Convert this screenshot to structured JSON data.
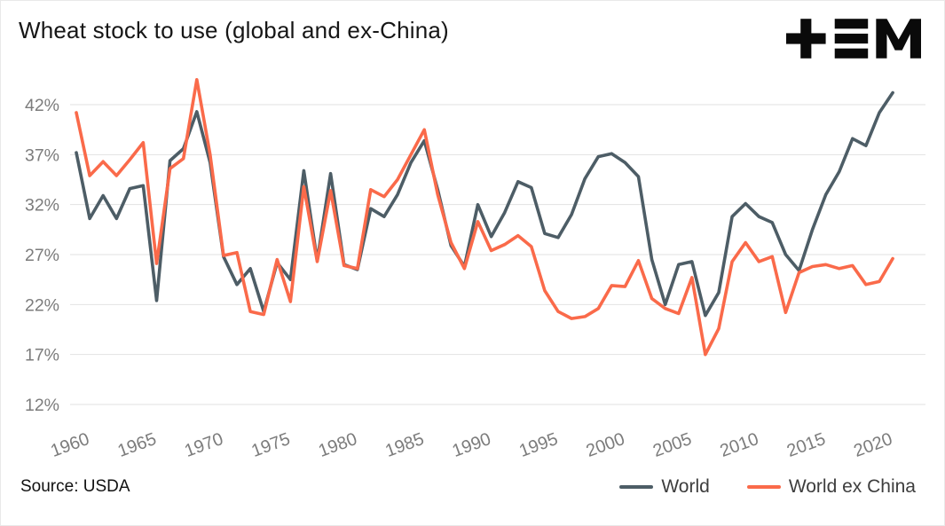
{
  "header": {
    "title": "Wheat stock to use (global and ex-China)"
  },
  "footer": {
    "source": "Source: USDA"
  },
  "chart_data": {
    "type": "line",
    "title": "Wheat stock to use (global and ex-China)",
    "source": "Source: USDA",
    "grid": "horizontal",
    "legend_position": "bottom-right",
    "ylim": [
      12,
      45
    ],
    "yticks": [
      12,
      17,
      22,
      27,
      32,
      37,
      42
    ],
    "ytick_labels": [
      "12%",
      "17%",
      "22%",
      "27%",
      "32%",
      "37%",
      "42%"
    ],
    "xticks": [
      1960,
      1965,
      1970,
      1975,
      1980,
      1985,
      1990,
      1995,
      2000,
      2005,
      2010,
      2015,
      2020
    ],
    "x": [
      1960,
      1961,
      1962,
      1963,
      1964,
      1965,
      1966,
      1967,
      1968,
      1969,
      1970,
      1971,
      1972,
      1973,
      1974,
      1975,
      1976,
      1977,
      1978,
      1979,
      1980,
      1981,
      1982,
      1983,
      1984,
      1985,
      1986,
      1987,
      1988,
      1989,
      1990,
      1991,
      1992,
      1993,
      1994,
      1995,
      1996,
      1997,
      1998,
      1999,
      2000,
      2001,
      2002,
      2003,
      2004,
      2005,
      2006,
      2007,
      2008,
      2009,
      2010,
      2011,
      2012,
      2013,
      2014,
      2015,
      2016,
      2017,
      2018,
      2019,
      2020,
      2021
    ],
    "series": [
      {
        "name": "World",
        "color": "#4d5d66",
        "values": [
          37.2,
          30.6,
          32.9,
          30.6,
          33.6,
          33.9,
          22.4,
          36.4,
          37.6,
          41.3,
          36.2,
          26.8,
          24.0,
          25.6,
          21.3,
          26.2,
          24.5,
          35.4,
          26.4,
          35.1,
          26.0,
          25.5,
          31.6,
          30.8,
          33.0,
          36.2,
          38.4,
          33.5,
          27.9,
          25.8,
          32.0,
          28.8,
          31.2,
          34.3,
          33.7,
          29.1,
          28.7,
          31.0,
          34.6,
          36.8,
          37.1,
          36.2,
          34.8,
          26.5,
          22.0,
          26.0,
          26.3,
          20.9,
          23.2,
          30.8,
          32.1,
          30.8,
          30.2,
          27.0,
          25.4,
          29.5,
          33.0,
          35.3,
          38.6,
          37.9,
          41.2,
          43.2
        ]
      },
      {
        "name": "World ex China",
        "color": "#fa6a4a",
        "values": [
          41.2,
          34.9,
          36.3,
          34.9,
          36.5,
          38.2,
          26.1,
          35.6,
          36.6,
          44.5,
          37.0,
          26.9,
          27.2,
          21.3,
          21.0,
          26.5,
          22.3,
          33.8,
          26.3,
          33.4,
          25.9,
          25.6,
          33.5,
          32.8,
          34.5,
          37.0,
          39.5,
          33.0,
          28.2,
          25.6,
          30.3,
          27.4,
          28.0,
          28.9,
          27.8,
          23.4,
          21.3,
          20.6,
          20.8,
          21.6,
          23.9,
          23.8,
          26.4,
          22.6,
          21.6,
          21.1,
          24.7,
          17.0,
          19.6,
          26.3,
          28.2,
          26.3,
          26.8,
          21.2,
          25.2,
          25.8,
          26.0,
          25.6,
          25.9,
          24.0,
          24.3,
          26.6
        ]
      }
    ]
  }
}
